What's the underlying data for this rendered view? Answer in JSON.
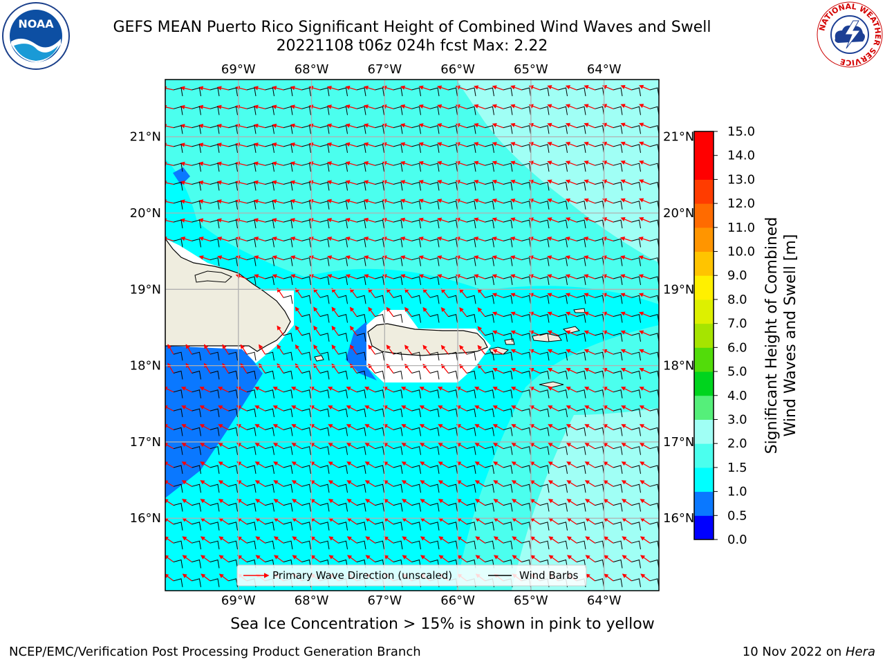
{
  "titles": {
    "line1": "GEFS MEAN Puerto Rico Significant Height of Combined Wind Waves and Swell",
    "line2": "20221108 t06z 024h fcst   Max: 2.22"
  },
  "logos": {
    "noaa_text": "NOAA",
    "nws_text": "NATIONAL WEATHER SERVICE"
  },
  "map": {
    "lon_labels": [
      "69°W",
      "68°W",
      "67°W",
      "66°W",
      "65°W",
      "64°W"
    ],
    "lat_labels": [
      "21°N",
      "20°N",
      "19°N",
      "18°N",
      "17°N",
      "16°N"
    ],
    "lon_values": [
      -69,
      -68,
      -67,
      -66,
      -65,
      -64
    ],
    "lat_values": [
      21,
      20,
      19,
      18,
      17,
      16
    ],
    "lon_range": [
      -70,
      -63.25
    ],
    "lat_range": [
      15.05,
      21.75
    ],
    "grid": true,
    "land_color": "#efeddf"
  },
  "legend": {
    "wave_label": "Primary Wave Direction (unscaled)",
    "barb_label": "Wind Barbs",
    "wave_color": "#ff0000",
    "barb_color": "#000000"
  },
  "colorbar": {
    "label_line1": "Significant Height of Combined",
    "label_line2": "Wind Waves and Swell [m]",
    "tick_labels": [
      "0.0",
      "0.5",
      "1.0",
      "1.5",
      "2.0",
      "3.0",
      "4.0",
      "5.0",
      "6.0",
      "7.0",
      "8.0",
      "9.0",
      "10.0",
      "11.0",
      "12.0",
      "13.0",
      "14.0",
      "15.0"
    ],
    "colors": [
      "#0000ff",
      "#0a78ff",
      "#00ffff",
      "#4bffee",
      "#a0fff5",
      "#55ef7a",
      "#00d41e",
      "#52dc0a",
      "#a6e400",
      "#ddf000",
      "#fff000",
      "#ffc400",
      "#ff9500",
      "#ff6b00",
      "#ff3c00",
      "#ff0000",
      "#ff0000"
    ]
  },
  "note": "Sea Ice Concentration > 15% is shown in pink to yellow",
  "footer": {
    "left": "NCEP/EMC/Verification Post Processing Product Generation Branch",
    "right_date": "10 Nov 2022 on ",
    "right_host": "Hera"
  }
}
